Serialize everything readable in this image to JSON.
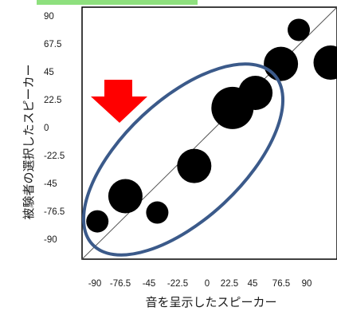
{
  "chart_data": {
    "type": "scatter",
    "title": "",
    "xlabel": "音を呈示したスピーカー",
    "ylabel": "被験者の選択したスピーカー",
    "x_ticks": [
      "-90",
      "-76.5",
      "-45",
      "-22.5",
      "0",
      "22.5",
      "45",
      "76.5",
      "90"
    ],
    "y_ticks": [
      "90",
      "67.5",
      "45",
      "22.5",
      "0",
      "-22.5",
      "-45",
      "-76.5",
      "-90"
    ],
    "xlim": [
      -100,
      100
    ],
    "ylim": [
      -100,
      100
    ],
    "reference_line": "y = x",
    "point_color": "#000000",
    "points": [
      {
        "x": -88,
        "y": -70,
        "size": 2
      },
      {
        "x": -66,
        "y": -50,
        "size": 5
      },
      {
        "x": -41,
        "y": -63,
        "size": 2
      },
      {
        "x": -12,
        "y": -26,
        "size": 5
      },
      {
        "x": 18,
        "y": 20,
        "size": 7
      },
      {
        "x": 36,
        "y": 32,
        "size": 5
      },
      {
        "x": 56,
        "y": 55,
        "size": 5
      },
      {
        "x": 70,
        "y": 82,
        "size": 2
      },
      {
        "x": 95,
        "y": 56,
        "size": 5
      }
    ],
    "annotations": {
      "arrow_color": "#ff0000",
      "arrow_direction": "down",
      "ellipse_color": "#3b5a8a",
      "highlight_bar_color": "#8ee07e"
    }
  }
}
